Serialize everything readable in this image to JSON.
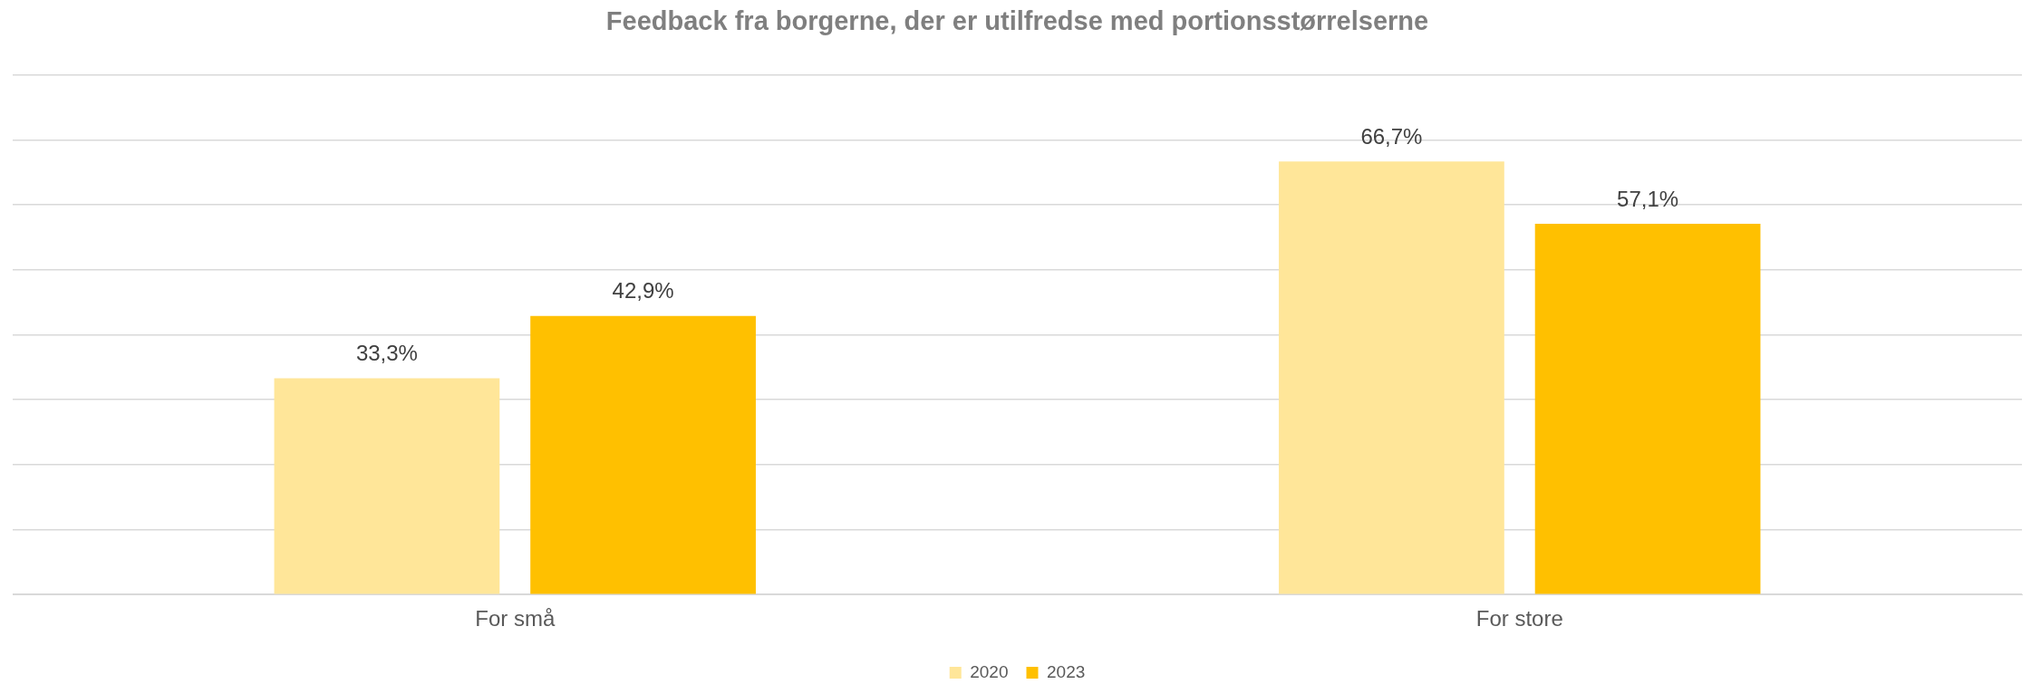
{
  "chart_data": {
    "type": "bar",
    "title": "Feedback fra borgerne, der er utilfredse med portionsstørrelserne",
    "categories": [
      "For små",
      "For store"
    ],
    "series": [
      {
        "name": "2020",
        "color": "#ffe699",
        "values": [
          33.3,
          66.7
        ],
        "value_labels": [
          "33,3%",
          "66,7%"
        ]
      },
      {
        "name": "2023",
        "color": "#ffc000",
        "values": [
          42.9,
          57.1
        ],
        "value_labels": [
          "42,9%",
          "57,1%"
        ]
      }
    ],
    "ylim": [
      0,
      80
    ],
    "yticks": [
      {
        "value": 0,
        "label": null
      },
      {
        "value": 10,
        "label": null
      },
      {
        "value": 20,
        "label": null
      },
      {
        "value": 30,
        "label": null
      },
      {
        "value": 40,
        "label": null
      },
      {
        "value": 50,
        "label": null
      },
      {
        "value": 60,
        "label": null
      },
      {
        "value": 70,
        "label": null
      },
      {
        "value": 80,
        "label": null
      }
    ],
    "grid": "y",
    "legend": "bottom",
    "tick_labels": "x"
  }
}
